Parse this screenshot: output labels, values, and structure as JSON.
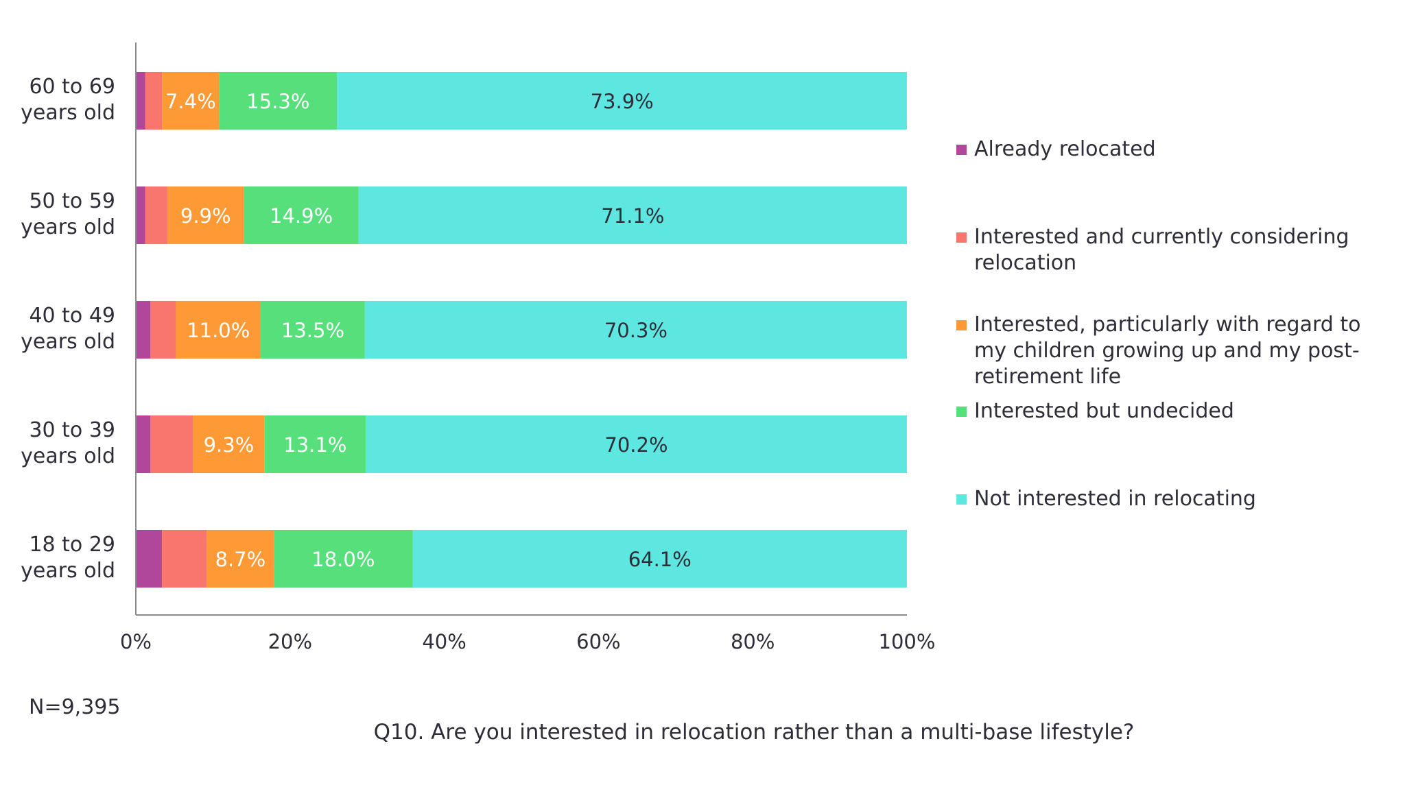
{
  "chart_data": {
    "type": "bar",
    "orientation": "horizontal",
    "stacked": true,
    "categories": [
      [
        "60 to 69",
        "years old"
      ],
      [
        "50 to 59",
        "years old"
      ],
      [
        "40 to 49",
        "years old"
      ],
      [
        "30 to 39",
        "years old"
      ],
      [
        "18 to 29",
        "years old"
      ]
    ],
    "series": [
      {
        "name": "Already relocated",
        "color": "#b1479b",
        "values": [
          1.2,
          1.2,
          1.9,
          1.9,
          3.4
        ],
        "labels": [
          "",
          "",
          "",
          "",
          ""
        ]
      },
      {
        "name": "Interested and currently considering relocation",
        "color": "#f9766f",
        "values": [
          2.2,
          2.9,
          3.3,
          5.5,
          5.8
        ],
        "labels": [
          "",
          "",
          "",
          "",
          ""
        ]
      },
      {
        "name": "Interested, particularly with regard to my children growing up and my post-retirement life",
        "color": "#fd9a35",
        "values": [
          7.4,
          9.9,
          11.0,
          9.3,
          8.7
        ],
        "labels": [
          "7.4%",
          "9.9%",
          "11.0%",
          "9.3%",
          "8.7%"
        ]
      },
      {
        "name": "Interested but undecided",
        "color": "#56df7b",
        "values": [
          15.3,
          14.9,
          13.5,
          13.1,
          18.0
        ],
        "labels": [
          "15.3%",
          "14.9%",
          "13.5%",
          "13.1%",
          "18.0%"
        ]
      },
      {
        "name": "Not interested in relocating",
        "color": "#5ee7e0",
        "values": [
          73.9,
          71.1,
          70.3,
          70.2,
          64.1
        ],
        "labels": [
          "73.9%",
          "71.1%",
          "70.3%",
          "70.2%",
          "64.1%"
        ]
      }
    ],
    "xlim": [
      0,
      100
    ],
    "x_ticks": [
      0,
      20,
      40,
      60,
      80,
      100
    ],
    "x_tick_labels": [
      "0%",
      "20%",
      "40%",
      "60%",
      "80%",
      "100%"
    ],
    "grid": false,
    "legend_position": "right",
    "value_label_colors": [
      "#ffffff",
      "#ffffff",
      "#ffffff",
      "#ffffff",
      "#2e2e38"
    ],
    "axis_color": "#8c8c8c"
  },
  "note": "N=9,395",
  "question": "Q10. Are you interested in relocation rather than a multi-base lifestyle?"
}
